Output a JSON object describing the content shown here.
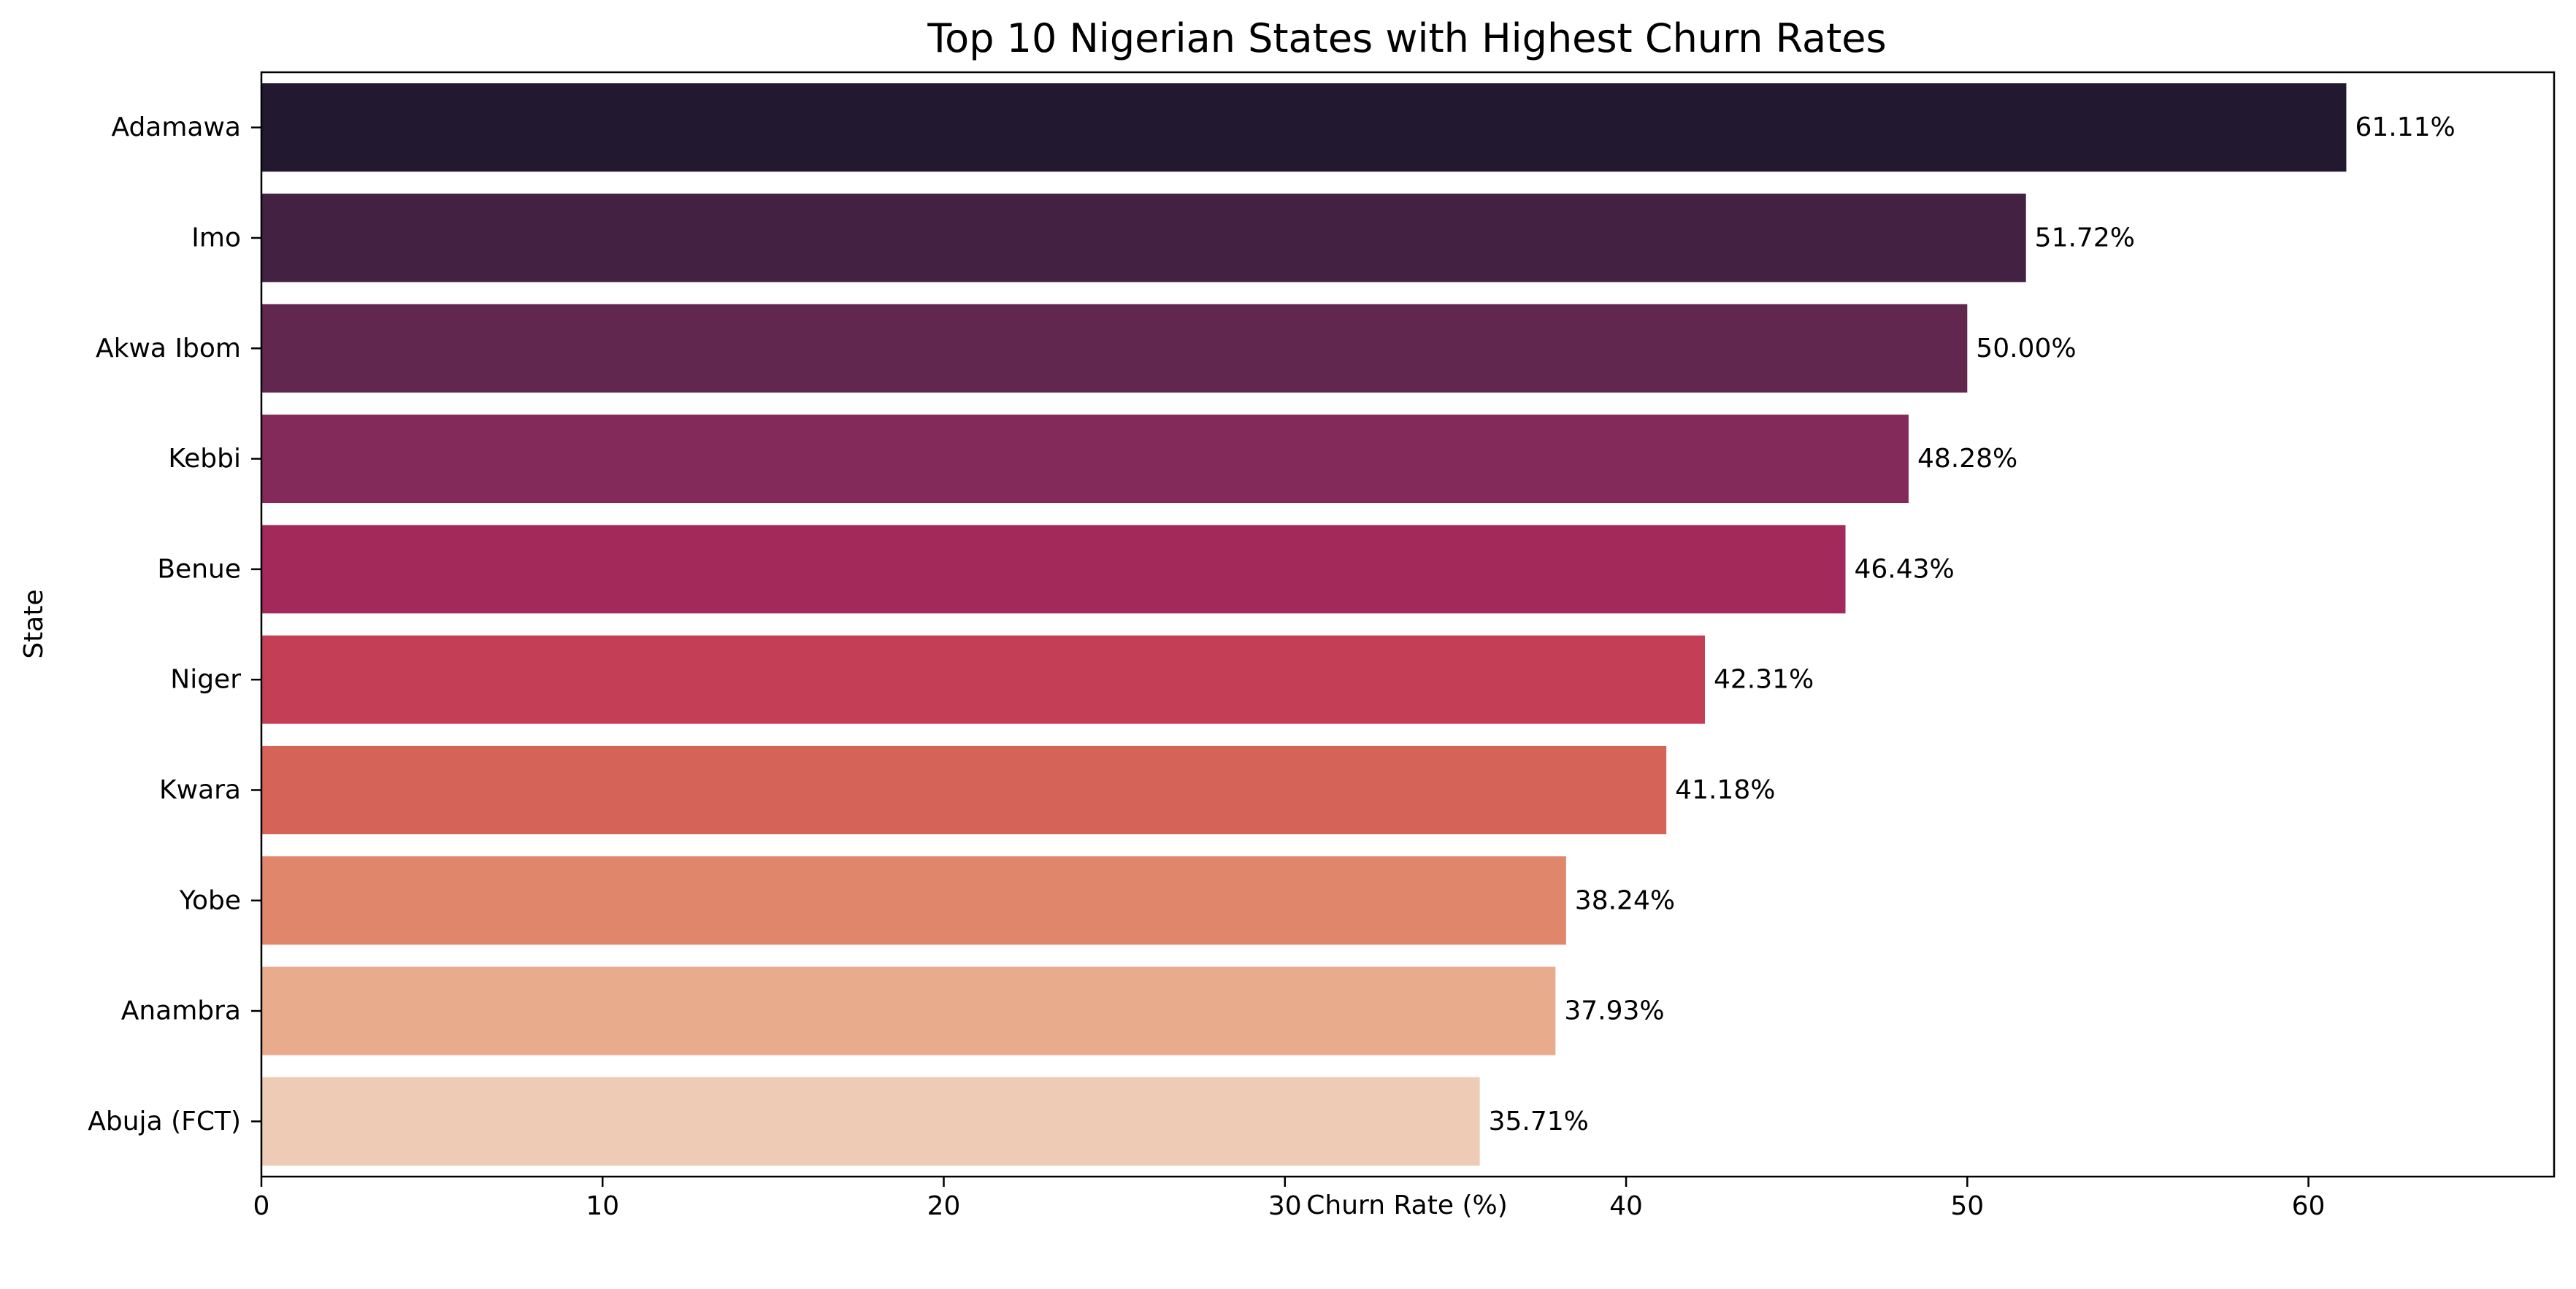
{
  "chart_data": {
    "type": "bar",
    "orientation": "horizontal",
    "title": "Top 10 Nigerian States with Highest Churn Rates",
    "xlabel": "Churn Rate (%)",
    "ylabel": "State",
    "xlim": [
      0,
      67.2
    ],
    "xticks": [
      0,
      10,
      20,
      30,
      40,
      50,
      60
    ],
    "grid": false,
    "categories": [
      "Adamawa",
      "Imo",
      "Akwa Ibom",
      "Kebbi",
      "Benue",
      "Niger",
      "Kwara",
      "Yobe",
      "Anambra",
      "Abuja (FCT)"
    ],
    "values": [
      61.11,
      51.72,
      50.0,
      48.28,
      46.43,
      42.31,
      41.18,
      38.24,
      37.93,
      35.71
    ],
    "data_labels": [
      "61.11%",
      "51.72%",
      "50.00%",
      "48.28%",
      "46.43%",
      "42.31%",
      "41.18%",
      "38.24%",
      "37.93%",
      "35.71%"
    ],
    "colors": [
      "#221830",
      "#422142",
      "#62274f",
      "#832a5a",
      "#a3295b",
      "#c43e56",
      "#d66357",
      "#e0866b",
      "#e8ab8b",
      "#eecbb5"
    ]
  }
}
